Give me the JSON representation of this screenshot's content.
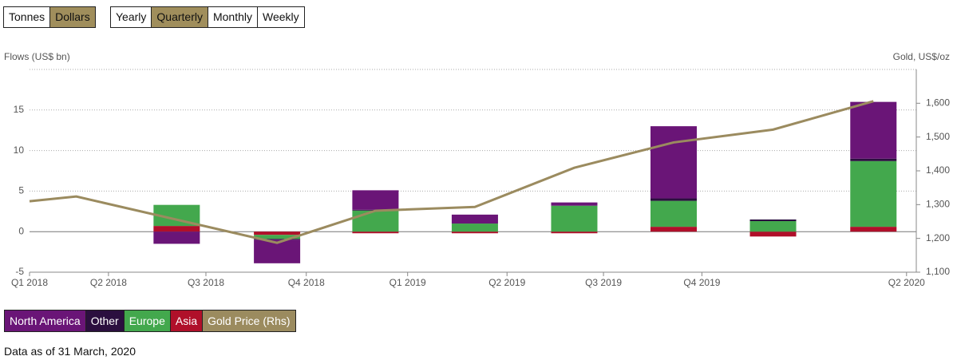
{
  "controls": {
    "units": [
      "Tonnes",
      "Dollars"
    ],
    "periods": [
      "Yearly",
      "Quarterly",
      "Monthly",
      "Weekly"
    ],
    "selected_unit": "Dollars",
    "selected_period": "Quarterly"
  },
  "chart_data": {
    "type": "bar",
    "stacked": true,
    "y_label": "Flows (US$ bn)",
    "y2_label": "Gold, US$/oz",
    "xlim": [
      0,
      9.1
    ],
    "xticks": [
      {
        "value": 0,
        "label": "Q1 2018"
      },
      {
        "value": 0.81,
        "label": "Q2 2018"
      },
      {
        "value": 1.81,
        "label": "Q3 2018"
      },
      {
        "value": 2.84,
        "label": "Q4 2018"
      },
      {
        "value": 3.88,
        "label": "Q1 2019"
      },
      {
        "value": 4.9,
        "label": "Q2 2019"
      },
      {
        "value": 5.89,
        "label": "Q3 2019"
      },
      {
        "value": 6.9,
        "label": "Q4 2019"
      },
      {
        "value": 9,
        "label": "Q2 2020"
      }
    ],
    "ylim": [
      -5,
      20
    ],
    "yticks": [
      -5,
      0,
      5,
      10,
      15
    ],
    "y2lim": [
      1100,
      1700
    ],
    "y2ticks": [
      {
        "value": 1100,
        "label": "1,100"
      },
      {
        "value": 1200,
        "label": "1,200"
      },
      {
        "value": 1300,
        "label": "1,300"
      },
      {
        "value": 1400,
        "label": "1,400"
      },
      {
        "value": 1500,
        "label": "1,500"
      },
      {
        "value": 1600,
        "label": "1,600"
      }
    ],
    "grid": true,
    "series": [
      {
        "name": "North America",
        "color": "#6a1577",
        "x": [
          1.51,
          2.54,
          3.55,
          4.57,
          5.59,
          6.61,
          7.63,
          8.66
        ],
        "values": [
          -1.5,
          -2.9,
          2.4,
          1.1,
          0.4,
          8.9,
          0,
          7.0
        ]
      },
      {
        "name": "Other",
        "color": "#2b0f3f",
        "x": [
          1.51,
          2.54,
          3.55,
          4.57,
          5.59,
          6.61,
          7.63,
          8.66
        ],
        "values": [
          0,
          -0.1,
          0.1,
          0,
          0,
          0.3,
          0.2,
          0.3
        ]
      },
      {
        "name": "Europe",
        "color": "#43a84d",
        "x": [
          1.51,
          2.54,
          3.55,
          4.57,
          5.59,
          6.61,
          7.63,
          8.66
        ],
        "values": [
          2.6,
          -0.5,
          2.6,
          1.0,
          3.2,
          3.2,
          1.3,
          8.1
        ]
      },
      {
        "name": "Asia",
        "color": "#b0102a",
        "x": [
          1.51,
          2.54,
          3.55,
          4.57,
          5.59,
          6.61,
          7.63,
          8.66
        ],
        "values": [
          0.7,
          -0.4,
          -0.2,
          -0.2,
          -0.2,
          0.6,
          -0.6,
          0.6
        ]
      },
      {
        "name": "Gold Price (Rhs)",
        "color": "#9b8b5f",
        "type": "line",
        "axis": "y2",
        "x": [
          0,
          0.48,
          2.54,
          3.55,
          4.57,
          5.59,
          6.61,
          7.63,
          8.66
        ],
        "values": [
          1310,
          1324,
          1187,
          1282,
          1293,
          1409,
          1484,
          1522,
          1606
        ]
      }
    ]
  },
  "footnote": "Data as of 31 March, 2020"
}
